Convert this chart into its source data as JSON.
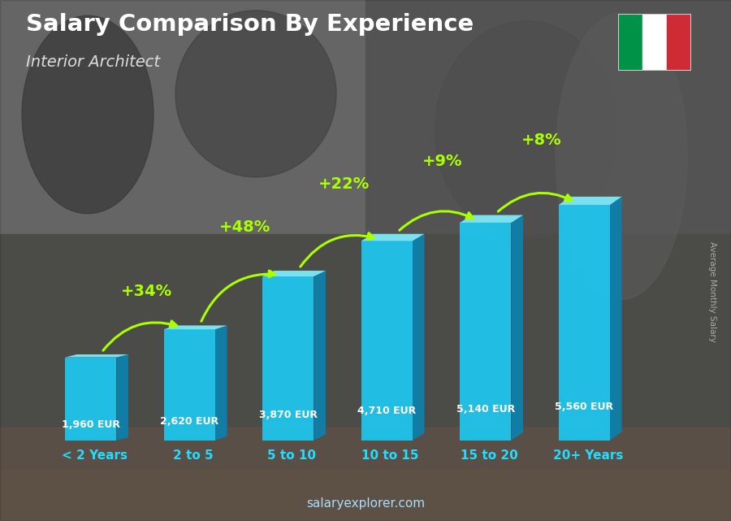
{
  "title": "Salary Comparison By Experience",
  "subtitle": "Interior Architect",
  "ylabel": "Average Monthly Salary",
  "footer": "salaryexplorer.com",
  "categories": [
    "< 2 Years",
    "2 to 5",
    "5 to 10",
    "10 to 15",
    "15 to 20",
    "20+ Years"
  ],
  "values": [
    1960,
    2620,
    3870,
    4710,
    5140,
    5560
  ],
  "value_labels": [
    "1,960 EUR",
    "2,620 EUR",
    "3,870 EUR",
    "4,710 EUR",
    "5,140 EUR",
    "5,560 EUR"
  ],
  "pct_labels": [
    "+34%",
    "+48%",
    "+22%",
    "+9%",
    "+8%"
  ],
  "bar_color_face": "#1EC8F0",
  "bar_color_side": "#0E7FAA",
  "bar_color_top": "#7EEAF8",
  "title_color": "#FFFFFF",
  "subtitle_color": "#DDDDDD",
  "value_label_color": "#FFFFFF",
  "pct_color": "#AAFF00",
  "tick_color": "#22DDFF",
  "footer_color": "#AADDFF",
  "ylabel_color": "#AAAAAA",
  "flag_green": "#009246",
  "flag_white": "#FFFFFF",
  "flag_red": "#CE2B37",
  "bg_dark": "#3a3a3a",
  "bg_mid": "#5a5a5a",
  "bg_light": "#787878"
}
